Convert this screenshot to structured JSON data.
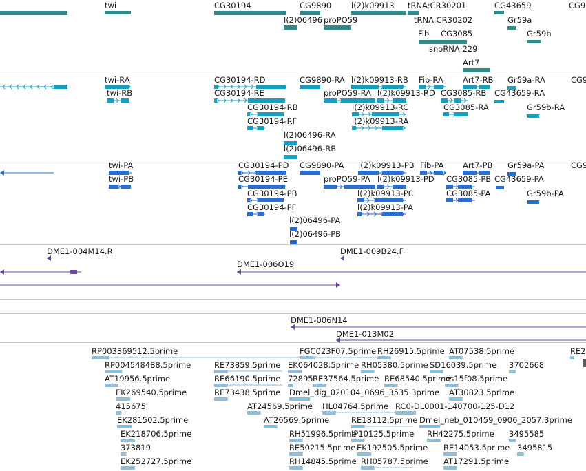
{
  "colors": {
    "gene": "#2f8a8a",
    "transcript": "#179fbf",
    "protein": "#2a6fd0",
    "clone": "#6b45a3",
    "est": "#8cbedf",
    "separator": "#c8c8c8",
    "text": "#1a1a1a"
  },
  "gene_labels": [
    "twi",
    "CG30194",
    "CG9890",
    "l(2)k09913",
    "tRNA:CR30201",
    "CG43659",
    "CG9",
    "l(2)06496",
    "proPO59",
    "tRNA:CR30202",
    "Fib",
    "CG3085",
    "Gr59a",
    "Gr59b",
    "snoRNA:229",
    "Art7"
  ],
  "transcript_labels": [
    "twi-RA",
    "twi-RB",
    "CG30194-RD",
    "CG30194-RE",
    "CG30194-RB",
    "CG30194-RF",
    "l(2)06496-RA",
    "l(2)06496-RB",
    "CG9890-RA",
    "proPO59-RA",
    "l(2)k09913-RB",
    "l(2)k09913-RD",
    "l(2)k09913-RC",
    "l(2)k09913-RA",
    "Fib-RA",
    "Art7-RB",
    "CG3085-RB",
    "CG3085-RA",
    "Gr59a-RA",
    "CG43659-RA",
    "Gr59b-RA",
    "CG9"
  ],
  "protein_labels": [
    "twi-PA",
    "twi-PB",
    "CG30194-PD",
    "CG30194-PE",
    "CG30194-PB",
    "CG30194-PF",
    "l(2)06496-PA",
    "l(2)06496-PB",
    "CG9890-PA",
    "proPO59-PA",
    "l(2)k09913-PB",
    "l(2)k09913-PD",
    "l(2)k09913-PC",
    "l(2)k09913-PA",
    "Fib-PA",
    "Art7-PB",
    "CG3085-PB",
    "CG3085-PA",
    "CG43659-PA",
    "Gr59a-PA",
    "Gr59b-PA",
    "CG9"
  ],
  "clone_labels": [
    "DME1-004M14.R",
    "DME1-009B24.F",
    "DME1-006O19"
  ],
  "clone2_labels": [
    "DME1-006N14",
    "DME1-013M02"
  ],
  "est_labels": [
    "RP003369512.5prime",
    "FGC023F07.5prime",
    "RH26915.5prime",
    "AT07538.5prime",
    "RE2",
    "RP004548488.5prime",
    "RE73859.5prime",
    "EK064028.5prime",
    "RH05380.5prime",
    "SD16039.5prime",
    "3702668",
    "AT19956.5prime",
    "RE66190.5prime",
    "72895",
    "RE37564.5prime",
    "RE68540.5prime",
    "bs15f08.5prime",
    "EK269540.5prime",
    "RE73438.5prime",
    "Dmel_dig_020104_0696_3535.3prime",
    "AT30823.5prime",
    "415675",
    "AT24569.5prime",
    "HL04764.5prime",
    "RC0-DL0001-140700-125-D12",
    "EK281502.5prime",
    "AT26569.5prime",
    "RE18112.5prime",
    "Dmel_neb_010459_0906_2057.3prime",
    "EK218706.5prime",
    "RH51996.5prime",
    "IP10125.5prime",
    "RH42275.5prime",
    "3495585",
    "373819",
    "RE50215.5prime",
    "EK192505.5prime",
    "RE14053.5prime",
    "3495815",
    "EK252727.5prime",
    "RH14845.5prime",
    "RH05787.5prime",
    "AT17291.5prime"
  ]
}
